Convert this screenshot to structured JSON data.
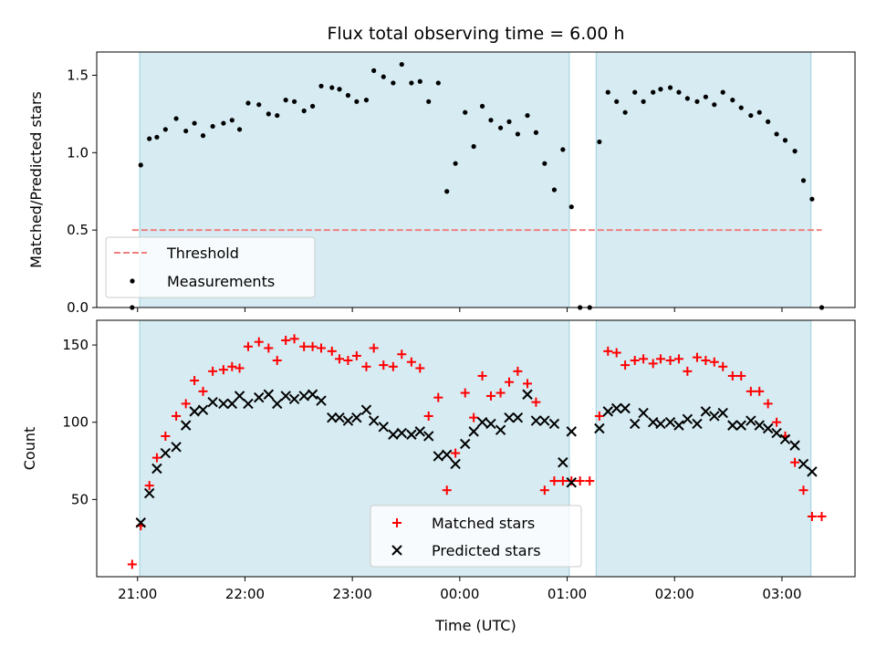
{
  "chart_data": [
    {
      "type": "scatter",
      "title": "Flux total observing time = 6.00 h",
      "ylabel": "Matched/Predicted stars",
      "ylim": [
        0,
        1.65
      ],
      "yticks": [
        0.0,
        0.5,
        1.0,
        1.5
      ],
      "ytick_labels": [
        "0.0",
        "0.5",
        "1.0",
        "1.5"
      ],
      "xlim": [
        -0.38,
        6.68
      ],
      "xticks": [
        0,
        1,
        2,
        3,
        4,
        5,
        6
      ],
      "shaded_spans": [
        [
          0.02,
          4.02
        ],
        [
          4.27,
          6.27
        ]
      ],
      "threshold": {
        "name": "Threshold",
        "value": 0.5,
        "x": [
          -0.05,
          6.37
        ],
        "color": "#f08080"
      },
      "series": [
        {
          "name": "Measurements",
          "color": "#000000",
          "x": [
            -0.05,
            0.03,
            0.11,
            0.18,
            0.26,
            0.36,
            0.45,
            0.53,
            0.61,
            0.7,
            0.8,
            0.88,
            0.95,
            1.03,
            1.13,
            1.22,
            1.3,
            1.38,
            1.46,
            1.55,
            1.63,
            1.71,
            1.81,
            1.88,
            1.96,
            2.04,
            2.13,
            2.2,
            2.29,
            2.38,
            2.46,
            2.55,
            2.63,
            2.71,
            2.8,
            2.88,
            2.96,
            3.05,
            3.13,
            3.21,
            3.29,
            3.38,
            3.46,
            3.54,
            3.63,
            3.71,
            3.79,
            3.88,
            3.96,
            4.04,
            4.12,
            4.21,
            4.3,
            4.38,
            4.46,
            4.54,
            4.63,
            4.71,
            4.8,
            4.87,
            4.96,
            5.04,
            5.12,
            5.21,
            5.29,
            5.37,
            5.45,
            5.54,
            5.62,
            5.71,
            5.79,
            5.87,
            5.95,
            6.03,
            6.12,
            6.2,
            6.28,
            6.37
          ],
          "y": [
            0.0,
            0.92,
            1.09,
            1.1,
            1.15,
            1.22,
            1.14,
            1.19,
            1.11,
            1.17,
            1.19,
            1.21,
            1.15,
            1.32,
            1.31,
            1.25,
            1.24,
            1.34,
            1.33,
            1.27,
            1.3,
            1.43,
            1.42,
            1.41,
            1.37,
            1.33,
            1.34,
            1.53,
            1.49,
            1.45,
            1.57,
            1.45,
            1.46,
            1.33,
            1.45,
            0.75,
            0.93,
            1.26,
            1.04,
            1.3,
            1.21,
            1.16,
            1.2,
            1.12,
            1.24,
            1.13,
            0.93,
            0.76,
            1.02,
            0.65,
            0.0,
            0.0,
            1.07,
            1.39,
            1.33,
            1.26,
            1.39,
            1.33,
            1.39,
            1.41,
            1.42,
            1.39,
            1.35,
            1.33,
            1.36,
            1.31,
            1.39,
            1.34,
            1.29,
            1.24,
            1.26,
            1.2,
            1.12,
            1.08,
            1.01,
            0.82,
            0.7,
            0.0
          ]
        }
      ],
      "legend": {
        "loc": "lower left"
      }
    },
    {
      "type": "scatter",
      "xlabel": "Time (UTC)",
      "ylabel": "Count",
      "ylim": [
        0,
        166
      ],
      "yticks": [
        50,
        100,
        150
      ],
      "ytick_labels": [
        "50",
        "100",
        "150"
      ],
      "xlim": [
        -0.38,
        6.68
      ],
      "xticks": [
        0,
        1,
        2,
        3,
        4,
        5,
        6
      ],
      "xtick_labels": [
        "21:00",
        "22:00",
        "23:00",
        "00:00",
        "01:00",
        "02:00",
        "03:00"
      ],
      "shaded_spans": [
        [
          0.02,
          4.02
        ],
        [
          4.27,
          6.27
        ]
      ],
      "series": [
        {
          "name": "Matched stars",
          "color": "#ff0000",
          "marker": "plus",
          "x": [
            -0.05,
            0.03,
            0.11,
            0.18,
            0.26,
            0.36,
            0.45,
            0.53,
            0.61,
            0.7,
            0.8,
            0.88,
            0.95,
            1.03,
            1.13,
            1.22,
            1.3,
            1.38,
            1.46,
            1.55,
            1.63,
            1.71,
            1.81,
            1.88,
            1.96,
            2.04,
            2.13,
            2.2,
            2.29,
            2.38,
            2.46,
            2.55,
            2.63,
            2.71,
            2.8,
            2.88,
            2.96,
            3.05,
            3.13,
            3.21,
            3.29,
            3.38,
            3.46,
            3.54,
            3.63,
            3.71,
            3.79,
            3.88,
            3.96,
            4.04,
            4.12,
            4.21,
            4.3,
            4.38,
            4.46,
            4.54,
            4.63,
            4.71,
            4.8,
            4.87,
            4.96,
            5.04,
            5.12,
            5.21,
            5.29,
            5.37,
            5.45,
            5.54,
            5.62,
            5.71,
            5.79,
            5.87,
            5.95,
            6.03,
            6.12,
            6.2,
            6.28,
            6.37
          ],
          "y": [
            8,
            33,
            59,
            77,
            91,
            104,
            112,
            127,
            120,
            133,
            134,
            136,
            135,
            149,
            152,
            148,
            140,
            153,
            154,
            149,
            149,
            148,
            146,
            141,
            140,
            143,
            136,
            148,
            137,
            136,
            144,
            139,
            135,
            104,
            116,
            56,
            80,
            119,
            103,
            130,
            117,
            119,
            126,
            133,
            125,
            113,
            56,
            62,
            62,
            62,
            62,
            62,
            104,
            146,
            145,
            137,
            140,
            141,
            138,
            141,
            140,
            141,
            133,
            142,
            140,
            139,
            136,
            130,
            130,
            120,
            120,
            112,
            100,
            91,
            74,
            56,
            39,
            39
          ]
        },
        {
          "name": "Predicted stars",
          "color": "#000000",
          "marker": "x",
          "x": [
            0.03,
            0.11,
            0.18,
            0.26,
            0.36,
            0.45,
            0.53,
            0.61,
            0.7,
            0.8,
            0.88,
            0.95,
            1.03,
            1.13,
            1.22,
            1.3,
            1.38,
            1.46,
            1.55,
            1.63,
            1.71,
            1.81,
            1.88,
            1.96,
            2.04,
            2.13,
            2.2,
            2.29,
            2.38,
            2.46,
            2.55,
            2.63,
            2.71,
            2.8,
            2.88,
            2.96,
            3.05,
            3.13,
            3.21,
            3.29,
            3.38,
            3.46,
            3.54,
            3.63,
            3.71,
            3.79,
            3.88,
            3.96,
            4.04,
            4.3,
            4.38,
            4.46,
            4.54,
            4.63,
            4.71,
            4.8,
            4.87,
            4.96,
            5.04,
            5.12,
            5.21,
            5.29,
            5.37,
            5.45,
            5.54,
            5.62,
            5.71,
            5.79,
            5.87,
            5.95,
            6.03,
            6.12,
            6.2,
            6.28
          ],
          "y": [
            35,
            54,
            70,
            80,
            84,
            98,
            107,
            108,
            113,
            112,
            112,
            117,
            112,
            116,
            118,
            112,
            117,
            115,
            117,
            118,
            114,
            103,
            103,
            101,
            103,
            108,
            101,
            97,
            92,
            93,
            92,
            94,
            91,
            78,
            79,
            73,
            86,
            94,
            100,
            99,
            95,
            103,
            103,
            118,
            101,
            101,
            99,
            74,
            61,
            96,
            107,
            109,
            109,
            99,
            106,
            100,
            99,
            100,
            98,
            102,
            99,
            107,
            104,
            106,
            98,
            98,
            101,
            98,
            96,
            93,
            89,
            85,
            73,
            68
          ]
        }
      ],
      "extra_markers": [
        {
          "series": "Predicted stars",
          "x": 4.04,
          "y": 94
        }
      ],
      "legend": {
        "loc": "lower center"
      }
    }
  ]
}
